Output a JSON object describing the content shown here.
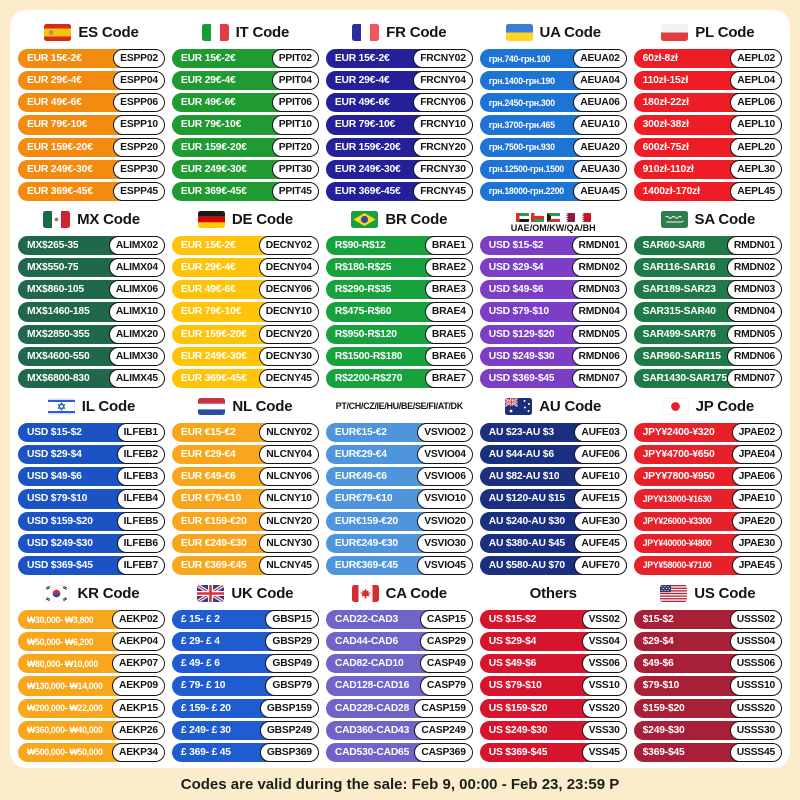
{
  "footer": {
    "text": "Codes are valid during the sale: Feb 9, 00:00 - Feb 23, 23:59 P"
  },
  "sections": [
    {
      "title": "ES Code",
      "flag": "es",
      "pill_color": "#F28B0F",
      "rows": [
        {
          "range": "EUR 15€-2€",
          "code": "ESPP02"
        },
        {
          "range": "EUR 29€-4€",
          "code": "ESPP04"
        },
        {
          "range": "EUR 49€-6€",
          "code": "ESPP06"
        },
        {
          "range": "EUR 79€-10€",
          "code": "ESPP10"
        },
        {
          "range": "EUR 159€-20€",
          "code": "ESPP20"
        },
        {
          "range": "EUR 249€-30€",
          "code": "ESPP30"
        },
        {
          "range": "EUR 369€-45€",
          "code": "ESPP45"
        }
      ]
    },
    {
      "title": "IT Code",
      "flag": "it",
      "pill_color": "#1F9B32",
      "rows": [
        {
          "range": "EUR 15€-2€",
          "code": "PPIT02"
        },
        {
          "range": "EUR 29€-4€",
          "code": "PPIT04"
        },
        {
          "range": "EUR 49€-6€",
          "code": "PPIT06"
        },
        {
          "range": "EUR 79€-10€",
          "code": "PPIT10"
        },
        {
          "range": "EUR 159€-20€",
          "code": "PPIT20"
        },
        {
          "range": "EUR 249€-30€",
          "code": "PPIT30"
        },
        {
          "range": "EUR 369€-45€",
          "code": "PPIT45"
        }
      ]
    },
    {
      "title": "FR Code",
      "flag": "fr",
      "pill_color": "#24209A",
      "rows": [
        {
          "range": "EUR 15€-2€",
          "code": "FRCNY02"
        },
        {
          "range": "EUR 29€-4€",
          "code": "FRCNY04"
        },
        {
          "range": "EUR 49€-6€",
          "code": "FRCNY06"
        },
        {
          "range": "EUR 79€-10€",
          "code": "FRCNY10"
        },
        {
          "range": "EUR 159€-20€",
          "code": "FRCNY20"
        },
        {
          "range": "EUR 249€-30€",
          "code": "FRCNY30"
        },
        {
          "range": "EUR 369€-45€",
          "code": "FRCNY45"
        }
      ]
    },
    {
      "title": "UA Code",
      "flag": "ua",
      "pill_color": "#1E74D4",
      "rows": [
        {
          "range": "грн.740-грн.100",
          "code": "AEUA02"
        },
        {
          "range": "грн.1400-грн.190",
          "code": "AEUA04"
        },
        {
          "range": "грн.2450-грн.300",
          "code": "AEUA06"
        },
        {
          "range": "грн.3700-грн.465",
          "code": "AEUA10"
        },
        {
          "range": "грн.7500-грн.930",
          "code": "AEUA20"
        },
        {
          "range": "грн.12500-грн.1500",
          "code": "AEUA30"
        },
        {
          "range": "грн.18000-грн.2200",
          "code": "AEUA45"
        }
      ]
    },
    {
      "title": "PL Code",
      "flag": "pl",
      "pill_color": "#EE1C24",
      "rows": [
        {
          "range": "60zł-8zł",
          "code": "AEPL02"
        },
        {
          "range": "110zł-15zł",
          "code": "AEPL04"
        },
        {
          "range": "180zł-22zł",
          "code": "AEPL06"
        },
        {
          "range": "300zł-38zł",
          "code": "AEPL10"
        },
        {
          "range": "600zł-75zł",
          "code": "AEPL20"
        },
        {
          "range": "910zł-110zł",
          "code": "AEPL30"
        },
        {
          "range": "1400zł-170zł",
          "code": "AEPL45"
        }
      ]
    },
    {
      "title": "MX Code",
      "flag": "mx",
      "pill_color": "#20684B",
      "rows": [
        {
          "range": "MX$265-35",
          "code": "ALIMX02"
        },
        {
          "range": "MX$550-75",
          "code": "ALIMX04"
        },
        {
          "range": "MX$860-105",
          "code": "ALIMX06"
        },
        {
          "range": "MX$1460-185",
          "code": "ALIMX10"
        },
        {
          "range": "MX$2850-355",
          "code": "ALIMX20"
        },
        {
          "range": "MX$4600-550",
          "code": "ALIMX30"
        },
        {
          "range": "MX$6800-830",
          "code": "ALIMX45"
        }
      ]
    },
    {
      "title": "DE Code",
      "flag": "de",
      "pill_color": "#FFC40A",
      "rows": [
        {
          "range": "EUR 15€-2€",
          "code": "DECNY02"
        },
        {
          "range": "EUR 29€-4€",
          "code": "DECNY04"
        },
        {
          "range": "EUR 49€-6€",
          "code": "DECNY06"
        },
        {
          "range": "EUR 79€-10€",
          "code": "DECNY10"
        },
        {
          "range": "EUR 159€-20€",
          "code": "DECNY20"
        },
        {
          "range": "EUR 249€-30€",
          "code": "DECNY30"
        },
        {
          "range": "EUR 369€-45€",
          "code": "DECNY45"
        }
      ]
    },
    {
      "title": "BR Code",
      "flag": "br",
      "pill_color": "#18A23E",
      "rows": [
        {
          "range": "R$90-R$12",
          "code": "BRAE1"
        },
        {
          "range": "R$180-R$25",
          "code": "BRAE2"
        },
        {
          "range": "R$290-R$35",
          "code": "BRAE3"
        },
        {
          "range": "R$475-R$60",
          "code": "BRAE4"
        },
        {
          "range": "R$950-R$120",
          "code": "BRAE5"
        },
        {
          "range": "R$1500-R$180",
          "code": "BRAE6"
        },
        {
          "range": "R$2200-R$270",
          "code": "BRAE7"
        }
      ]
    },
    {
      "title": "UAE/OM/KW/QA/BH",
      "flag": "uae5",
      "pill_color": "#7C3EC4",
      "rows": [
        {
          "range": "USD $15-$2",
          "code": "RMDN01"
        },
        {
          "range": "USD $29-$4",
          "code": "RMDN02"
        },
        {
          "range": "USD $49-$6",
          "code": "RMDN03"
        },
        {
          "range": "USD $79-$10",
          "code": "RMDN04"
        },
        {
          "range": "USD $129-$20",
          "code": "RMDN05"
        },
        {
          "range": "USD $249-$30",
          "code": "RMDN06"
        },
        {
          "range": "USD $369-$45",
          "code": "RMDN07"
        }
      ]
    },
    {
      "title": "SA Code",
      "flag": "sa",
      "pill_color": "#207A48",
      "rows": [
        {
          "range": "SAR60-SAR8",
          "code": "RMDN01"
        },
        {
          "range": "SAR116-SAR16",
          "code": "RMDN02"
        },
        {
          "range": "SAR189-SAR23",
          "code": "RMDN03"
        },
        {
          "range": "SAR315-SAR40",
          "code": "RMDN04"
        },
        {
          "range": "SAR499-SAR76",
          "code": "RMDN05"
        },
        {
          "range": "SAR960-SAR115",
          "code": "RMDN06"
        },
        {
          "range": "SAR1430-SAR175",
          "code": "RMDN07"
        }
      ]
    },
    {
      "title": "IL Code",
      "flag": "il",
      "pill_color": "#1B53C5",
      "rows": [
        {
          "range": "USD $15-$2",
          "code": "ILFEB1"
        },
        {
          "range": "USD $29-$4",
          "code": "ILFEB2"
        },
        {
          "range": "USD $49-$6",
          "code": "ILFEB3"
        },
        {
          "range": "USD $79-$10",
          "code": "ILFEB4"
        },
        {
          "range": "USD $159-$20",
          "code": "ILFEB5"
        },
        {
          "range": "USD $249-$30",
          "code": "ILFEB6"
        },
        {
          "range": "USD $369-$45",
          "code": "ILFEB7"
        }
      ]
    },
    {
      "title": "NL Code",
      "flag": "nl",
      "pill_color": "#F8A61B",
      "rows": [
        {
          "range": "EUR €15-€2",
          "code": "NLCNY02"
        },
        {
          "range": "EUR €29-€4",
          "code": "NLCNY04"
        },
        {
          "range": "EUR €49-€6",
          "code": "NLCNY06"
        },
        {
          "range": "EUR €79-€10",
          "code": "NLCNY10"
        },
        {
          "range": "EUR €159-€20",
          "code": "NLCNY20"
        },
        {
          "range": "EUR €249-€30",
          "code": "NLCNY30"
        },
        {
          "range": "EUR €369-€45",
          "code": "NLCNY45"
        }
      ]
    },
    {
      "title": "PT/CH/CZ/IE/HU/BE/SE/FI/AT/DK",
      "flag": null,
      "pill_color": "#4E95DC",
      "rows": [
        {
          "range": "EUR€15-€2",
          "code": "VSVIO02"
        },
        {
          "range": "EUR€29-€4",
          "code": "VSVIO04"
        },
        {
          "range": "EUR€49-€6",
          "code": "VSVIO06"
        },
        {
          "range": "EUR€79-€10",
          "code": "VSVIO10"
        },
        {
          "range": "EUR€159-€20",
          "code": "VSVIO20"
        },
        {
          "range": "EUR€249-€30",
          "code": "VSVIO30"
        },
        {
          "range": "EUR€369-€45",
          "code": "VSVIO45"
        }
      ]
    },
    {
      "title": "AU Code",
      "flag": "au",
      "pill_color": "#1B2F80",
      "rows": [
        {
          "range": "AU $23-AU $3",
          "code": "AUFE03"
        },
        {
          "range": "AU $44-AU $6",
          "code": "AUFE06"
        },
        {
          "range": "AU $82-AU $10",
          "code": "AUFE10"
        },
        {
          "range": "AU $120-AU $15",
          "code": "AUFE15"
        },
        {
          "range": "AU $240-AU $30",
          "code": "AUFE30"
        },
        {
          "range": "AU $380-AU $45",
          "code": "AUFE45"
        },
        {
          "range": "AU $580-AU $70",
          "code": "AUFE70"
        }
      ]
    },
    {
      "title": "JP Code",
      "flag": "jp",
      "pill_color": "#E7212A",
      "rows": [
        {
          "range": "JPY¥2400-¥320",
          "code": "JPAE02"
        },
        {
          "range": "JPY¥4700-¥650",
          "code": "JPAE04"
        },
        {
          "range": "JPY¥7800-¥950",
          "code": "JPAE06"
        },
        {
          "range": "JPY¥13000-¥1630",
          "code": "JPAE10"
        },
        {
          "range": "JPY¥26000-¥3300",
          "code": "JPAE20"
        },
        {
          "range": "JPY¥40000-¥4800",
          "code": "JPAE30"
        },
        {
          "range": "JPY¥58000-¥7100",
          "code": "JPAE45"
        }
      ]
    },
    {
      "title": "KR Code",
      "flag": "kr",
      "pill_color": "#F8A61B",
      "rows": [
        {
          "range": "₩30,000- ₩3,800",
          "code": "AEKP02"
        },
        {
          "range": "₩50,000- ₩6,200",
          "code": "AEKP04"
        },
        {
          "range": "₩80,000- ₩10,000",
          "code": "AEKP07"
        },
        {
          "range": "₩130,000- ₩14,000",
          "code": "AEKP09"
        },
        {
          "range": "₩200,000- ₩22,000",
          "code": "AEKP15"
        },
        {
          "range": "₩360,000- ₩40,000",
          "code": "AEKP26"
        },
        {
          "range": "₩500,000- ₩50,000",
          "code": "AEKP34"
        }
      ]
    },
    {
      "title": "UK Code",
      "flag": "uk",
      "pill_color": "#1E5CD0",
      "rows": [
        {
          "range": "£ 15- £ 2",
          "code": "GBSP15"
        },
        {
          "range": "£ 29- £ 4",
          "code": "GBSP29"
        },
        {
          "range": "£ 49- £ 6",
          "code": "GBSP49"
        },
        {
          "range": "£ 79- £ 10",
          "code": "GBSP79"
        },
        {
          "range": "£ 159- £ 20",
          "code": "GBSP159"
        },
        {
          "range": "£ 249- £ 30",
          "code": "GBSP249"
        },
        {
          "range": "£ 369- £ 45",
          "code": "GBSP369"
        }
      ]
    },
    {
      "title": "CA Code",
      "flag": "ca",
      "pill_color": "#7064C9",
      "rows": [
        {
          "range": "CAD22-CAD3",
          "code": "CASP15"
        },
        {
          "range": "CAD44-CAD6",
          "code": "CASP29"
        },
        {
          "range": "CAD82-CAD10",
          "code": "CASP49"
        },
        {
          "range": "CAD128-CAD16",
          "code": "CASP79"
        },
        {
          "range": "CAD228-CAD28",
          "code": "CASP159"
        },
        {
          "range": "CAD360-CAD43",
          "code": "CASP249"
        },
        {
          "range": "CAD530-CAD65",
          "code": "CASP369"
        }
      ]
    },
    {
      "title": "Others",
      "flag": null,
      "pill_color": "#D7142E",
      "rows": [
        {
          "range": "US $15-$2",
          "code": "VSS02"
        },
        {
          "range": "US $29-$4",
          "code": "VSS04"
        },
        {
          "range": "US $49-$6",
          "code": "VSS06"
        },
        {
          "range": "US $79-$10",
          "code": "VSS10"
        },
        {
          "range": "US $159-$20",
          "code": "VSS20"
        },
        {
          "range": "US $249-$30",
          "code": "VSS30"
        },
        {
          "range": "US $369-$45",
          "code": "VSS45"
        }
      ]
    },
    {
      "title": "US Code",
      "flag": "us",
      "pill_color": "#A82038",
      "rows": [
        {
          "range": "$15-$2",
          "code": "USSS02"
        },
        {
          "range": "$29-$4",
          "code": "USSS04"
        },
        {
          "range": "$49-$6",
          "code": "USSS06"
        },
        {
          "range": "$79-$10",
          "code": "USSS10"
        },
        {
          "range": "$159-$20",
          "code": "USSS20"
        },
        {
          "range": "$249-$30",
          "code": "USSS30"
        },
        {
          "range": "$369-$45",
          "code": "USSS45"
        }
      ]
    }
  ]
}
